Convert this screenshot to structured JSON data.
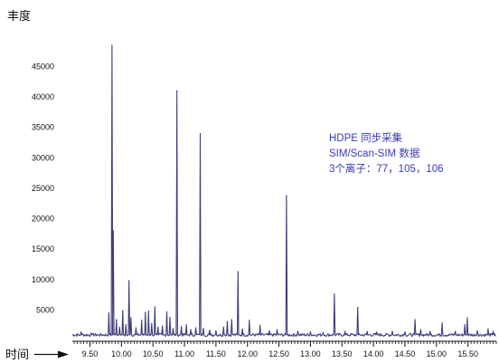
{
  "chart_data": {
    "type": "line",
    "title": "",
    "ylabel": "丰度",
    "xlabel": "时间",
    "xlim": [
      9.22,
      15.95
    ],
    "ylim": [
      0,
      48500
    ],
    "x_ticks": [
      "9.50",
      "10.00",
      "10.50",
      "11.00",
      "11.50",
      "12.00",
      "12.50",
      "13.00",
      "13.50",
      "14.00",
      "14.50",
      "15.00",
      "15.50"
    ],
    "y_ticks": [
      "5000",
      "10000",
      "15000",
      "20000",
      "25000",
      "30000",
      "35000",
      "40000",
      "45000"
    ],
    "grid": false,
    "legend": "none",
    "annotation": [
      "HDPE 同步采集",
      "SIM/Scan-SIM 数据",
      "3个离子：77，105，106"
    ],
    "colors": {
      "line": "#3d3d7a",
      "annotation": "#3a3ab4",
      "axis": "#111111"
    },
    "series": [
      {
        "baseline": 900,
        "peaks": [
          {
            "x": 9.36,
            "y": 1400
          },
          {
            "x": 9.52,
            "y": 1200
          },
          {
            "x": 9.8,
            "y": 4500
          },
          {
            "x": 9.85,
            "y": 48500
          },
          {
            "x": 9.87,
            "y": 18000
          },
          {
            "x": 9.92,
            "y": 3400
          },
          {
            "x": 9.97,
            "y": 2200
          },
          {
            "x": 10.02,
            "y": 4900
          },
          {
            "x": 10.07,
            "y": 2600
          },
          {
            "x": 10.12,
            "y": 9800
          },
          {
            "x": 10.15,
            "y": 3700
          },
          {
            "x": 10.23,
            "y": 2100
          },
          {
            "x": 10.32,
            "y": 3300
          },
          {
            "x": 10.38,
            "y": 4600
          },
          {
            "x": 10.43,
            "y": 4800
          },
          {
            "x": 10.48,
            "y": 2800
          },
          {
            "x": 10.53,
            "y": 5500
          },
          {
            "x": 10.58,
            "y": 2200
          },
          {
            "x": 10.65,
            "y": 2400
          },
          {
            "x": 10.72,
            "y": 4700
          },
          {
            "x": 10.77,
            "y": 3800
          },
          {
            "x": 10.82,
            "y": 2000
          },
          {
            "x": 10.88,
            "y": 41000
          },
          {
            "x": 10.95,
            "y": 2300
          },
          {
            "x": 11.03,
            "y": 2600
          },
          {
            "x": 11.1,
            "y": 1800
          },
          {
            "x": 11.18,
            "y": 2100
          },
          {
            "x": 11.25,
            "y": 34000
          },
          {
            "x": 11.3,
            "y": 2000
          },
          {
            "x": 11.4,
            "y": 1700
          },
          {
            "x": 11.5,
            "y": 1600
          },
          {
            "x": 11.62,
            "y": 2200
          },
          {
            "x": 11.68,
            "y": 3100
          },
          {
            "x": 11.75,
            "y": 3400
          },
          {
            "x": 11.85,
            "y": 11300
          },
          {
            "x": 11.92,
            "y": 1900
          },
          {
            "x": 12.03,
            "y": 3300
          },
          {
            "x": 12.2,
            "y": 2500
          },
          {
            "x": 12.35,
            "y": 1600
          },
          {
            "x": 12.47,
            "y": 1800
          },
          {
            "x": 12.62,
            "y": 23800
          },
          {
            "x": 12.8,
            "y": 1500
          },
          {
            "x": 13.0,
            "y": 1400
          },
          {
            "x": 13.2,
            "y": 1300
          },
          {
            "x": 13.38,
            "y": 7600
          },
          {
            "x": 13.55,
            "y": 1500
          },
          {
            "x": 13.75,
            "y": 5400
          },
          {
            "x": 13.9,
            "y": 1500
          },
          {
            "x": 14.05,
            "y": 1400
          },
          {
            "x": 14.3,
            "y": 1500
          },
          {
            "x": 14.5,
            "y": 1400
          },
          {
            "x": 14.66,
            "y": 3400
          },
          {
            "x": 14.75,
            "y": 1800
          },
          {
            "x": 14.9,
            "y": 1500
          },
          {
            "x": 15.09,
            "y": 2900
          },
          {
            "x": 15.3,
            "y": 1500
          },
          {
            "x": 15.45,
            "y": 2600
          },
          {
            "x": 15.49,
            "y": 3700
          },
          {
            "x": 15.65,
            "y": 1600
          },
          {
            "x": 15.82,
            "y": 1900
          },
          {
            "x": 15.9,
            "y": 1500
          }
        ]
      }
    ]
  }
}
